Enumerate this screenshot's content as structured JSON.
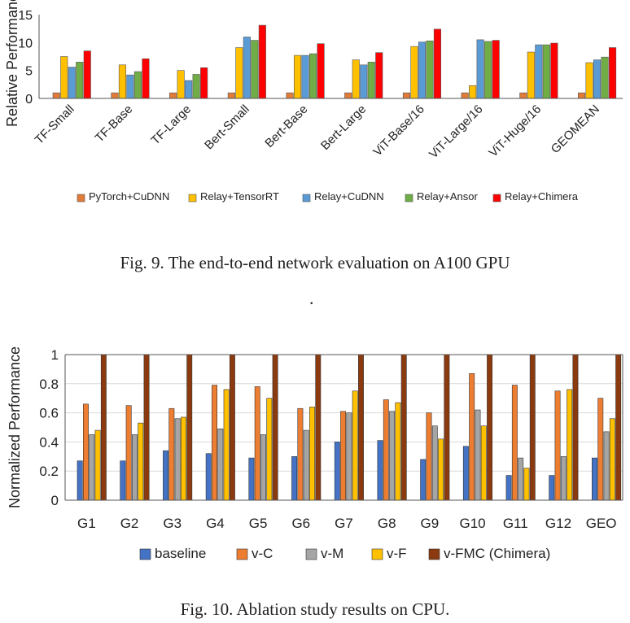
{
  "chart_data": [
    {
      "type": "bar",
      "ylabel": "Relative Performance",
      "ylim": [
        0,
        15
      ],
      "yticks": [
        0,
        5,
        10,
        15
      ],
      "categories": [
        "TF-Small",
        "TF-Base",
        "TF-Large",
        "Bert-Small",
        "Bert-Base",
        "Bert-Large",
        "ViT-Base/16",
        "ViT-Large/16",
        "ViT-Huge/16",
        "GEOMEAN"
      ],
      "series": [
        {
          "name": "PyTorch+CuDNN",
          "color": "#E07B39",
          "values": [
            1,
            1,
            1,
            1,
            1,
            1,
            1,
            1,
            1,
            1
          ]
        },
        {
          "name": "Relay+TensorRT",
          "color": "#FFC000",
          "values": [
            7.5,
            6.0,
            5.0,
            9.1,
            7.7,
            6.9,
            9.3,
            2.3,
            8.3,
            6.4
          ]
        },
        {
          "name": "Relay+CuDNN",
          "color": "#5B9BD5",
          "values": [
            5.6,
            4.2,
            3.2,
            11.0,
            7.7,
            6.0,
            10.1,
            10.5,
            9.6,
            6.9
          ]
        },
        {
          "name": "Relay+Ansor",
          "color": "#70AD47",
          "values": [
            6.5,
            4.8,
            4.3,
            10.4,
            8.0,
            6.5,
            10.3,
            10.2,
            9.6,
            7.4
          ]
        },
        {
          "name": "Relay+Chimera",
          "color": "#FF0000",
          "values": [
            8.5,
            7.1,
            5.5,
            13.1,
            9.8,
            8.2,
            12.4,
            10.4,
            9.9,
            9.1
          ]
        }
      ],
      "grid": false,
      "legend": "bottom"
    },
    {
      "type": "bar",
      "ylabel": "Normalized Performance",
      "ylim": [
        0,
        1
      ],
      "yticks": [
        0,
        0.2,
        0.4,
        0.6,
        0.8,
        1
      ],
      "categories": [
        "G1",
        "G2",
        "G3",
        "G4",
        "G5",
        "G6",
        "G7",
        "G8",
        "G9",
        "G10",
        "G11",
        "G12",
        "GEO"
      ],
      "series": [
        {
          "name": "baseline",
          "color": "#4472C4",
          "values": [
            0.27,
            0.27,
            0.34,
            0.32,
            0.29,
            0.3,
            0.4,
            0.41,
            0.28,
            0.37,
            0.17,
            0.17,
            0.29
          ]
        },
        {
          "name": "v-C",
          "color": "#ED7D31",
          "values": [
            0.66,
            0.65,
            0.63,
            0.79,
            0.78,
            0.63,
            0.61,
            0.69,
            0.6,
            0.87,
            0.79,
            0.75,
            0.7
          ]
        },
        {
          "name": "v-M",
          "color": "#A5A5A5",
          "values": [
            0.45,
            0.45,
            0.56,
            0.49,
            0.45,
            0.48,
            0.6,
            0.61,
            0.51,
            0.62,
            0.29,
            0.3,
            0.47
          ]
        },
        {
          "name": "v-F",
          "color": "#FFC000",
          "values": [
            0.48,
            0.53,
            0.57,
            0.76,
            0.7,
            0.64,
            0.75,
            0.67,
            0.42,
            0.51,
            0.22,
            0.76,
            0.56
          ]
        },
        {
          "name": "v-FMC (Chimera)",
          "color": "#8B3A0F",
          "values": [
            1,
            1,
            1,
            1,
            1,
            1,
            1,
            1,
            1,
            1,
            1,
            1,
            1
          ]
        }
      ],
      "grid": true,
      "legend": "bottom"
    }
  ],
  "captions": {
    "fig9": "Fig. 9.  The end-to-end network evaluation on A100 GPU",
    "dot": ".",
    "fig10": "Fig. 10.  Ablation study results on CPU."
  }
}
